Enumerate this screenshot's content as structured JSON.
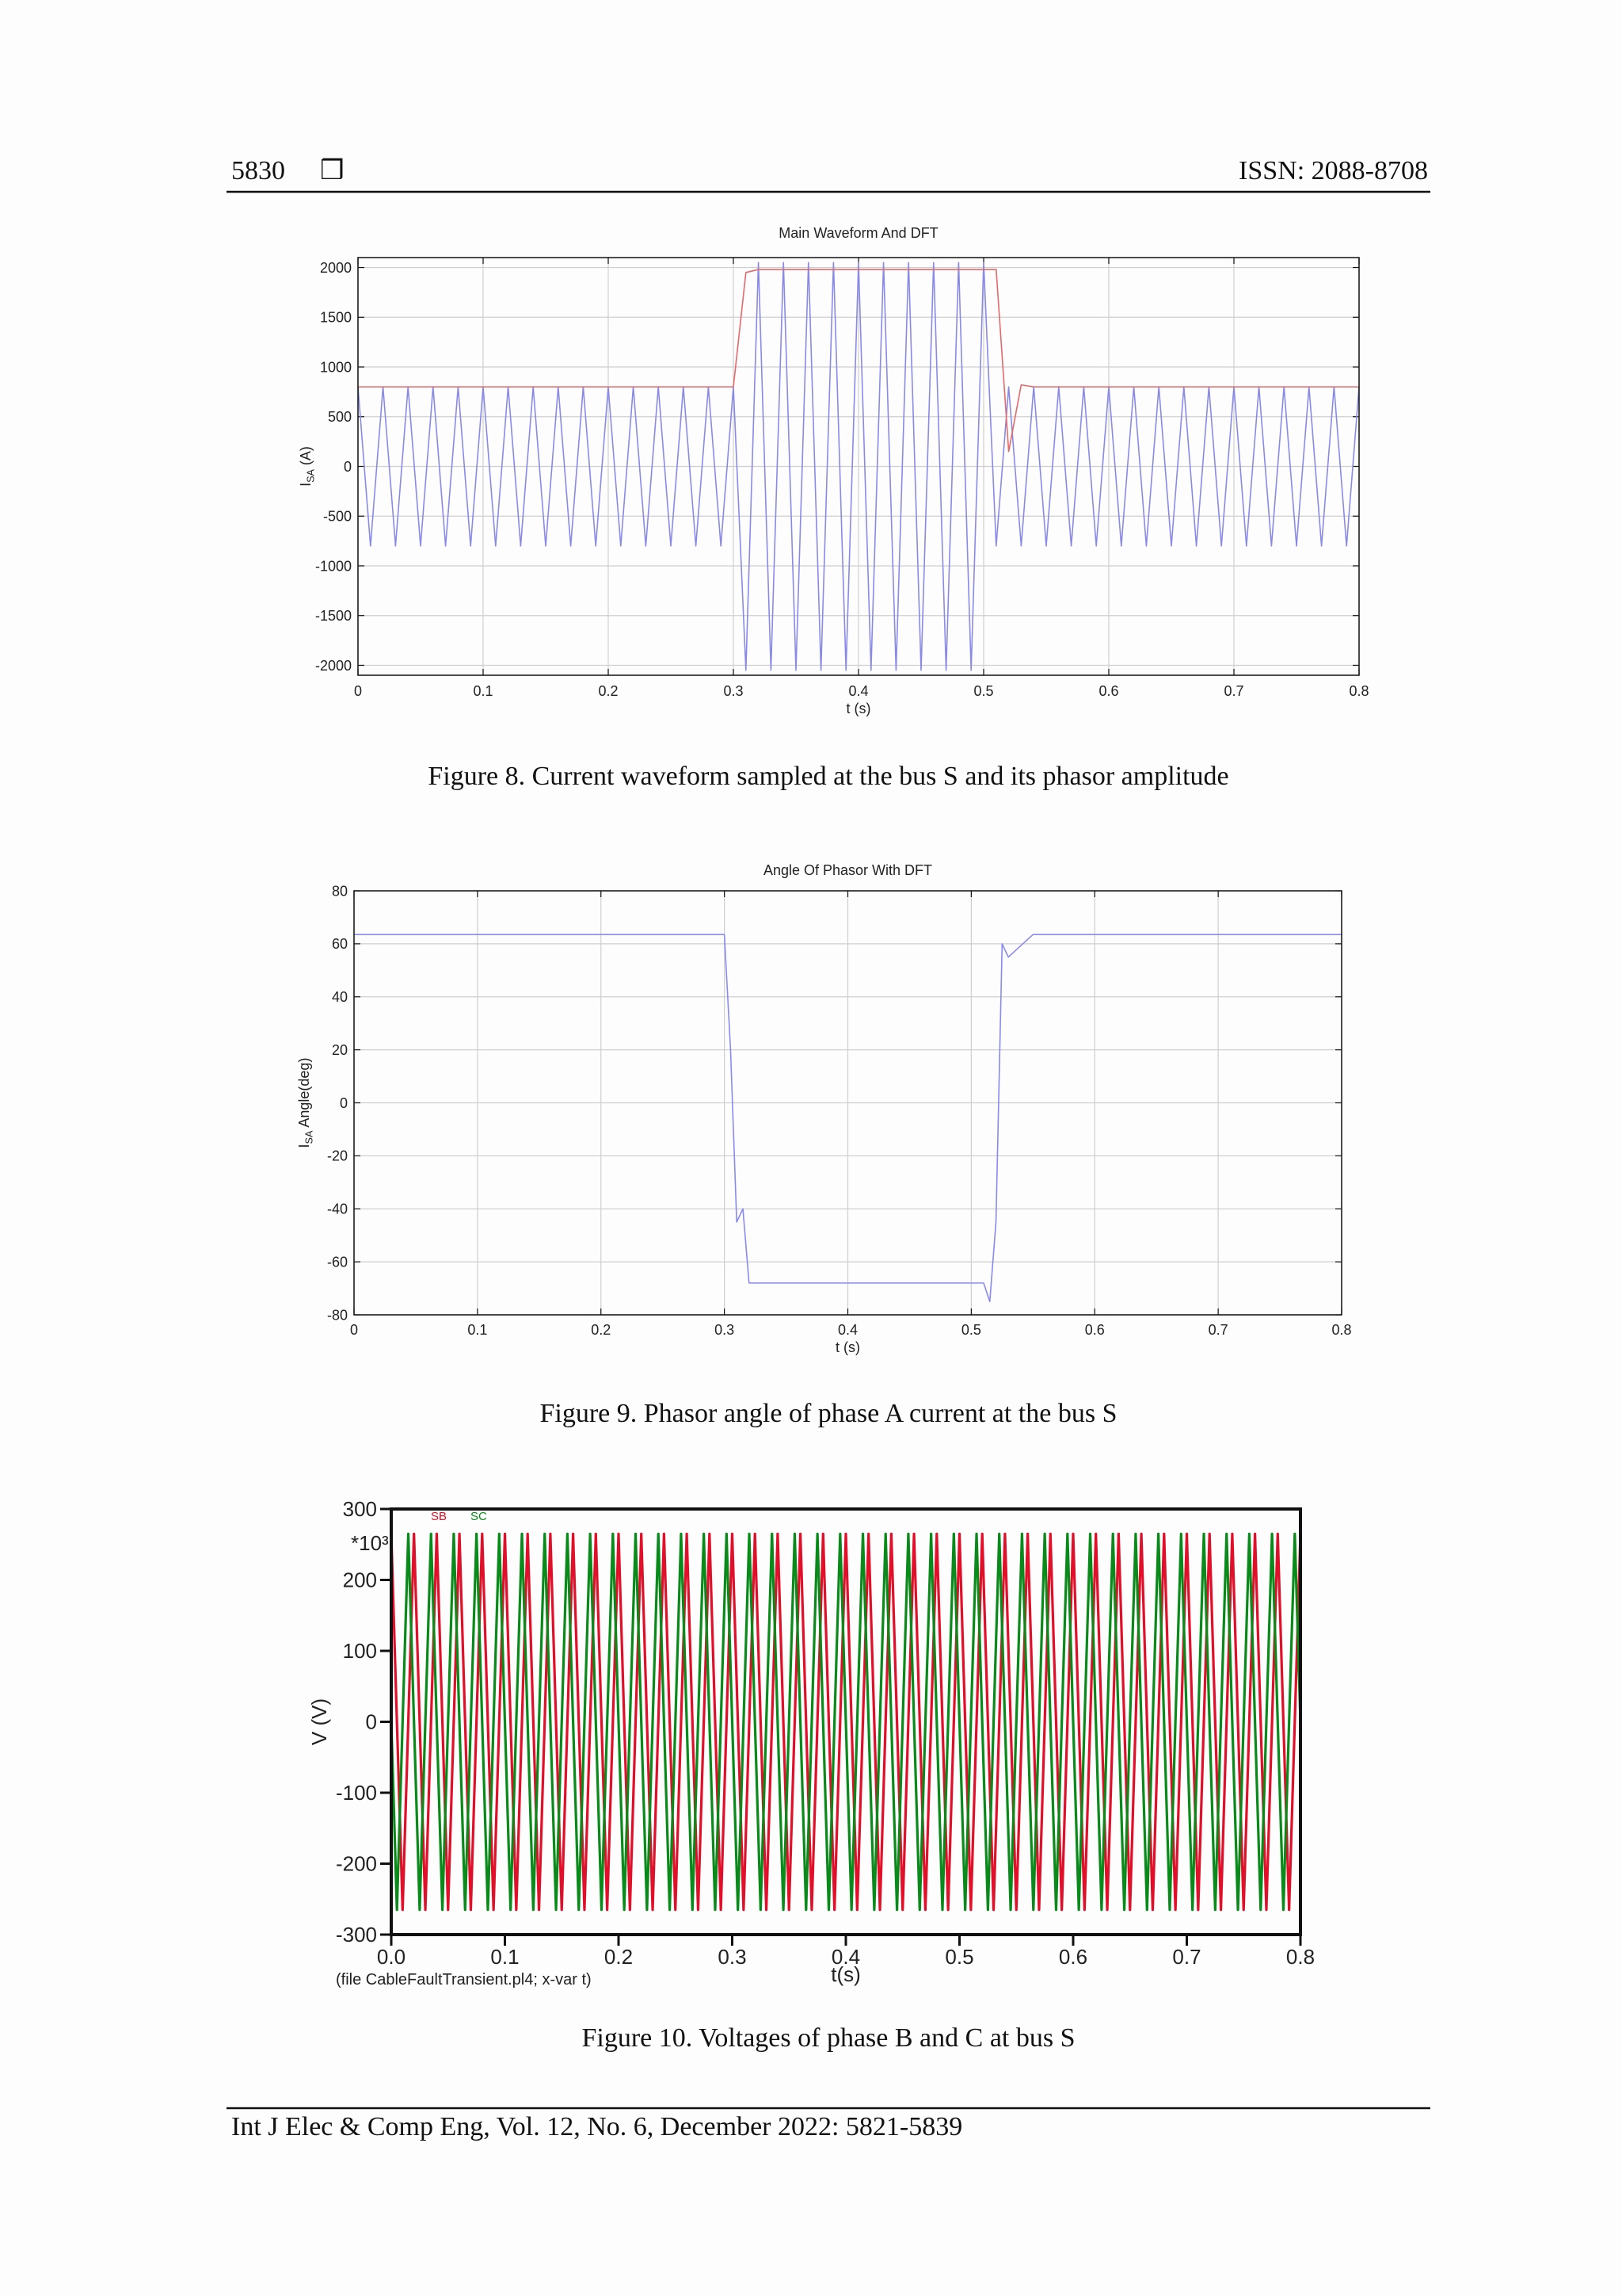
{
  "header": {
    "page": "5830",
    "symbol": "❒",
    "issn": "ISSN: 2088-8708"
  },
  "chart_data": [
    {
      "type": "line",
      "title": "Main Waveform And DFT",
      "xlabel": "t (s)",
      "ylabel": {
        "main": "I",
        "sub": "SA",
        "rest": " (A)"
      },
      "x": [
        0,
        0.01,
        0.02,
        0.03,
        0.04,
        0.05,
        0.06,
        0.07,
        0.08,
        0.09,
        0.1,
        0.11,
        0.12,
        0.13,
        0.14,
        0.15,
        0.16,
        0.17,
        0.18,
        0.19,
        0.2,
        0.21,
        0.22,
        0.23,
        0.24,
        0.25,
        0.26,
        0.27,
        0.28,
        0.29,
        0.3,
        0.31,
        0.32,
        0.33,
        0.34,
        0.35,
        0.36,
        0.37,
        0.38,
        0.39,
        0.4,
        0.41,
        0.42,
        0.43,
        0.44,
        0.45,
        0.46,
        0.47,
        0.48,
        0.49,
        0.5,
        0.51,
        0.52,
        0.53,
        0.54,
        0.55,
        0.56,
        0.57,
        0.58,
        0.59,
        0.6,
        0.61,
        0.62,
        0.63,
        0.64,
        0.65,
        0.66,
        0.67,
        0.68,
        0.69,
        0.7,
        0.71,
        0.72,
        0.73,
        0.74,
        0.75,
        0.76,
        0.77,
        0.78,
        0.79,
        0.8
      ],
      "series": [
        {
          "color": "#8a8ae6",
          "values": [
            800,
            -800,
            800,
            -800,
            800,
            -800,
            800,
            -800,
            800,
            -800,
            800,
            -800,
            800,
            -800,
            800,
            -800,
            800,
            -800,
            800,
            -800,
            800,
            -800,
            800,
            -800,
            800,
            -800,
            800,
            -800,
            800,
            -800,
            800,
            -2050,
            2050,
            -2050,
            2050,
            -2050,
            2050,
            -2050,
            2050,
            -2050,
            2050,
            -2050,
            2050,
            -2050,
            2050,
            -2050,
            2050,
            -2050,
            2050,
            -2050,
            2050,
            -800,
            800,
            -800,
            800,
            -800,
            800,
            -800,
            800,
            -800,
            800,
            -800,
            800,
            -800,
            800,
            -800,
            800,
            -800,
            800,
            -800,
            800,
            -800,
            800,
            -800,
            800,
            -800,
            800,
            -800,
            800,
            -800,
            800
          ]
        },
        {
          "color": "#e26a6a",
          "values": [
            800,
            800,
            800,
            800,
            800,
            800,
            800,
            800,
            800,
            800,
            800,
            800,
            800,
            800,
            800,
            800,
            800,
            800,
            800,
            800,
            800,
            800,
            800,
            800,
            800,
            800,
            800,
            800,
            800,
            800,
            800,
            1950,
            1980,
            1980,
            1980,
            1980,
            1980,
            1980,
            1980,
            1980,
            1980,
            1980,
            1980,
            1980,
            1980,
            1980,
            1980,
            1980,
            1980,
            1980,
            1980,
            1980,
            150,
            820,
            800,
            800,
            800,
            800,
            800,
            800,
            800,
            800,
            800,
            800,
            800,
            800,
            800,
            800,
            800,
            800,
            800,
            800,
            800,
            800,
            800,
            800,
            800,
            800,
            800,
            800,
            800
          ]
        }
      ],
      "xlim": [
        0,
        0.8
      ],
      "ylim": [
        -2100,
        2100
      ],
      "xticks": [
        0,
        0.1,
        0.2,
        0.3,
        0.4,
        0.5,
        0.6,
        0.7,
        0.8
      ],
      "yticks": [
        -2000,
        -1500,
        -1000,
        -500,
        0,
        500,
        1000,
        1500,
        2000
      ],
      "grid": true
    },
    {
      "type": "line",
      "title": "Angle Of Phasor With DFT",
      "xlabel": "t (s)",
      "ylabel": {
        "main": "I",
        "sub": "SA",
        "rest": " Angle(deg)"
      },
      "x": [
        0,
        0.3,
        0.305,
        0.31,
        0.315,
        0.32,
        0.5,
        0.51,
        0.515,
        0.52,
        0.525,
        0.53,
        0.55,
        0.8
      ],
      "series": [
        {
          "color": "#8a8aee",
          "values": [
            63.5,
            63.5,
            20,
            -45,
            -40,
            -68,
            -68,
            -68,
            -75,
            -45,
            60,
            55,
            63.5,
            63.5
          ]
        }
      ],
      "xlim": [
        0,
        0.8
      ],
      "ylim": [
        -80,
        80
      ],
      "xticks": [
        0,
        0.1,
        0.2,
        0.3,
        0.4,
        0.5,
        0.6,
        0.7,
        0.8
      ],
      "yticks": [
        -80,
        -60,
        -40,
        -20,
        0,
        20,
        40,
        60,
        80
      ],
      "grid": true
    },
    {
      "type": "line",
      "xlabel": "t(s)",
      "ylabel": "V (V)",
      "annotations": [
        "*10³",
        "(file CableFaultTransient.pl4; x-var t)"
      ],
      "x": [
        0,
        0.005,
        0.01,
        0.015,
        0.02,
        0.025,
        0.03,
        0.035,
        0.04,
        0.045,
        0.05,
        0.055,
        0.06,
        0.065,
        0.07,
        0.075,
        0.08,
        0.085,
        0.09,
        0.095,
        0.1,
        0.105,
        0.11,
        0.115,
        0.12,
        0.125,
        0.13,
        0.135,
        0.14,
        0.145,
        0.15,
        0.155,
        0.16,
        0.165,
        0.17,
        0.175,
        0.18,
        0.185,
        0.19,
        0.195,
        0.2,
        0.205,
        0.21,
        0.215,
        0.22,
        0.225,
        0.23,
        0.235,
        0.24,
        0.245,
        0.25,
        0.255,
        0.26,
        0.265,
        0.27,
        0.275,
        0.28,
        0.285,
        0.29,
        0.295,
        0.3,
        0.305,
        0.31,
        0.315,
        0.32,
        0.325,
        0.33,
        0.335,
        0.34,
        0.345,
        0.35,
        0.355,
        0.36,
        0.365,
        0.37,
        0.375,
        0.38,
        0.385,
        0.39,
        0.395,
        0.4,
        0.405,
        0.41,
        0.415,
        0.42,
        0.425,
        0.43,
        0.435,
        0.44,
        0.445,
        0.45,
        0.455,
        0.46,
        0.465,
        0.47,
        0.475,
        0.48,
        0.485,
        0.49,
        0.495,
        0.5,
        0.505,
        0.51,
        0.515,
        0.52,
        0.525,
        0.53,
        0.535,
        0.54,
        0.545,
        0.55,
        0.555,
        0.56,
        0.565,
        0.57,
        0.575,
        0.58,
        0.585,
        0.59,
        0.595,
        0.6,
        0.605,
        0.61,
        0.615,
        0.62,
        0.625,
        0.63,
        0.635,
        0.64,
        0.645,
        0.65,
        0.655,
        0.66,
        0.665,
        0.67,
        0.675,
        0.68,
        0.685,
        0.69,
        0.695,
        0.7,
        0.705,
        0.71,
        0.715,
        0.72,
        0.725,
        0.73,
        0.735,
        0.74,
        0.745,
        0.75,
        0.755,
        0.76,
        0.765,
        0.77,
        0.775,
        0.78,
        0.785,
        0.79,
        0.795,
        0.8
      ],
      "series": [
        {
          "name": "SB",
          "color": "#e0102a",
          "values": [
            265,
            0,
            -265,
            0,
            265,
            0,
            -265,
            0,
            265,
            0,
            -265,
            0,
            265,
            0,
            -265,
            0,
            265,
            0,
            -265,
            0,
            265,
            0,
            -265,
            0,
            265,
            0,
            -265,
            0,
            265,
            0,
            -265,
            0,
            265,
            0,
            -265,
            0,
            265,
            0,
            -265,
            0,
            265,
            0,
            -265,
            0,
            265,
            0,
            -265,
            0,
            265,
            0,
            -265,
            0,
            265,
            0,
            -265,
            0,
            265,
            0,
            -265,
            0,
            265,
            0,
            -265,
            0,
            265,
            0,
            -265,
            0,
            265,
            0,
            -265,
            0,
            265,
            0,
            -265,
            0,
            265,
            0,
            -265,
            0,
            265,
            0,
            -265,
            0,
            265,
            0,
            -265,
            0,
            265,
            0,
            -265,
            0,
            265,
            0,
            -265,
            0,
            265,
            0,
            -265,
            0,
            265,
            0,
            -265,
            0,
            265,
            0,
            -265,
            0,
            265,
            0,
            -265,
            0,
            265,
            0,
            -265,
            0,
            265,
            0,
            -265,
            0,
            265,
            0,
            -265,
            0,
            265,
            0,
            -265,
            0,
            265,
            0,
            -265,
            0,
            265,
            0,
            -265,
            0,
            265,
            0,
            -265,
            0,
            265,
            0,
            -265,
            0,
            265,
            0,
            -265,
            0,
            265,
            0,
            -265,
            0,
            265,
            0,
            -265,
            0,
            265,
            0,
            -265,
            0,
            265
          ]
        },
        {
          "name": "SC",
          "color": "#0a8a1a",
          "values": [
            0,
            -265,
            0,
            265,
            0,
            -265,
            0,
            265,
            0,
            -265,
            0,
            265,
            0,
            -265,
            0,
            265,
            0,
            -265,
            0,
            265,
            0,
            -265,
            0,
            265,
            0,
            -265,
            0,
            265,
            0,
            -265,
            0,
            265,
            0,
            -265,
            0,
            265,
            0,
            -265,
            0,
            265,
            0,
            -265,
            0,
            265,
            0,
            -265,
            0,
            265,
            0,
            -265,
            0,
            265,
            0,
            -265,
            0,
            265,
            0,
            -265,
            0,
            265,
            0,
            -265,
            0,
            265,
            0,
            -265,
            0,
            265,
            0,
            -265,
            0,
            265,
            0,
            -265,
            0,
            265,
            0,
            -265,
            0,
            265,
            0,
            -265,
            0,
            265,
            0,
            -265,
            0,
            265,
            0,
            -265,
            0,
            265,
            0,
            -265,
            0,
            265,
            0,
            -265,
            0,
            265,
            0,
            -265,
            0,
            265,
            0,
            -265,
            0,
            265,
            0,
            -265,
            0,
            265,
            0,
            -265,
            0,
            265,
            0,
            -265,
            0,
            265,
            0,
            -265,
            0,
            265,
            0,
            -265,
            0,
            265,
            0,
            -265,
            0,
            265,
            0,
            -265,
            0,
            265,
            0,
            -265,
            0,
            265,
            0,
            -265,
            0,
            265,
            0,
            -265,
            0,
            265,
            0,
            -265,
            0,
            265,
            0,
            -265,
            0,
            265,
            0,
            -265,
            0,
            265,
            0
          ]
        }
      ],
      "xlim": [
        0,
        0.8
      ],
      "ylim": [
        -300,
        300
      ],
      "xticks": [
        {
          "value": 0,
          "label": "0.0"
        },
        0.1,
        0.2,
        0.3,
        0.4,
        0.5,
        0.6,
        0.7,
        0.8
      ],
      "yticks": [
        -300,
        -200,
        -100,
        0,
        100,
        200,
        300
      ],
      "grid": false
    }
  ],
  "captions": [
    "Figure 8. Current waveform sampled at the bus S and its phasor amplitude",
    "Figure 9. Phasor angle of phase A current at the bus S",
    "Figure 10. Voltages of phase B and C at bus S"
  ],
  "footer": "Int J Elec & Comp Eng, Vol. 12, No. 6, December 2022: 5821-5839"
}
